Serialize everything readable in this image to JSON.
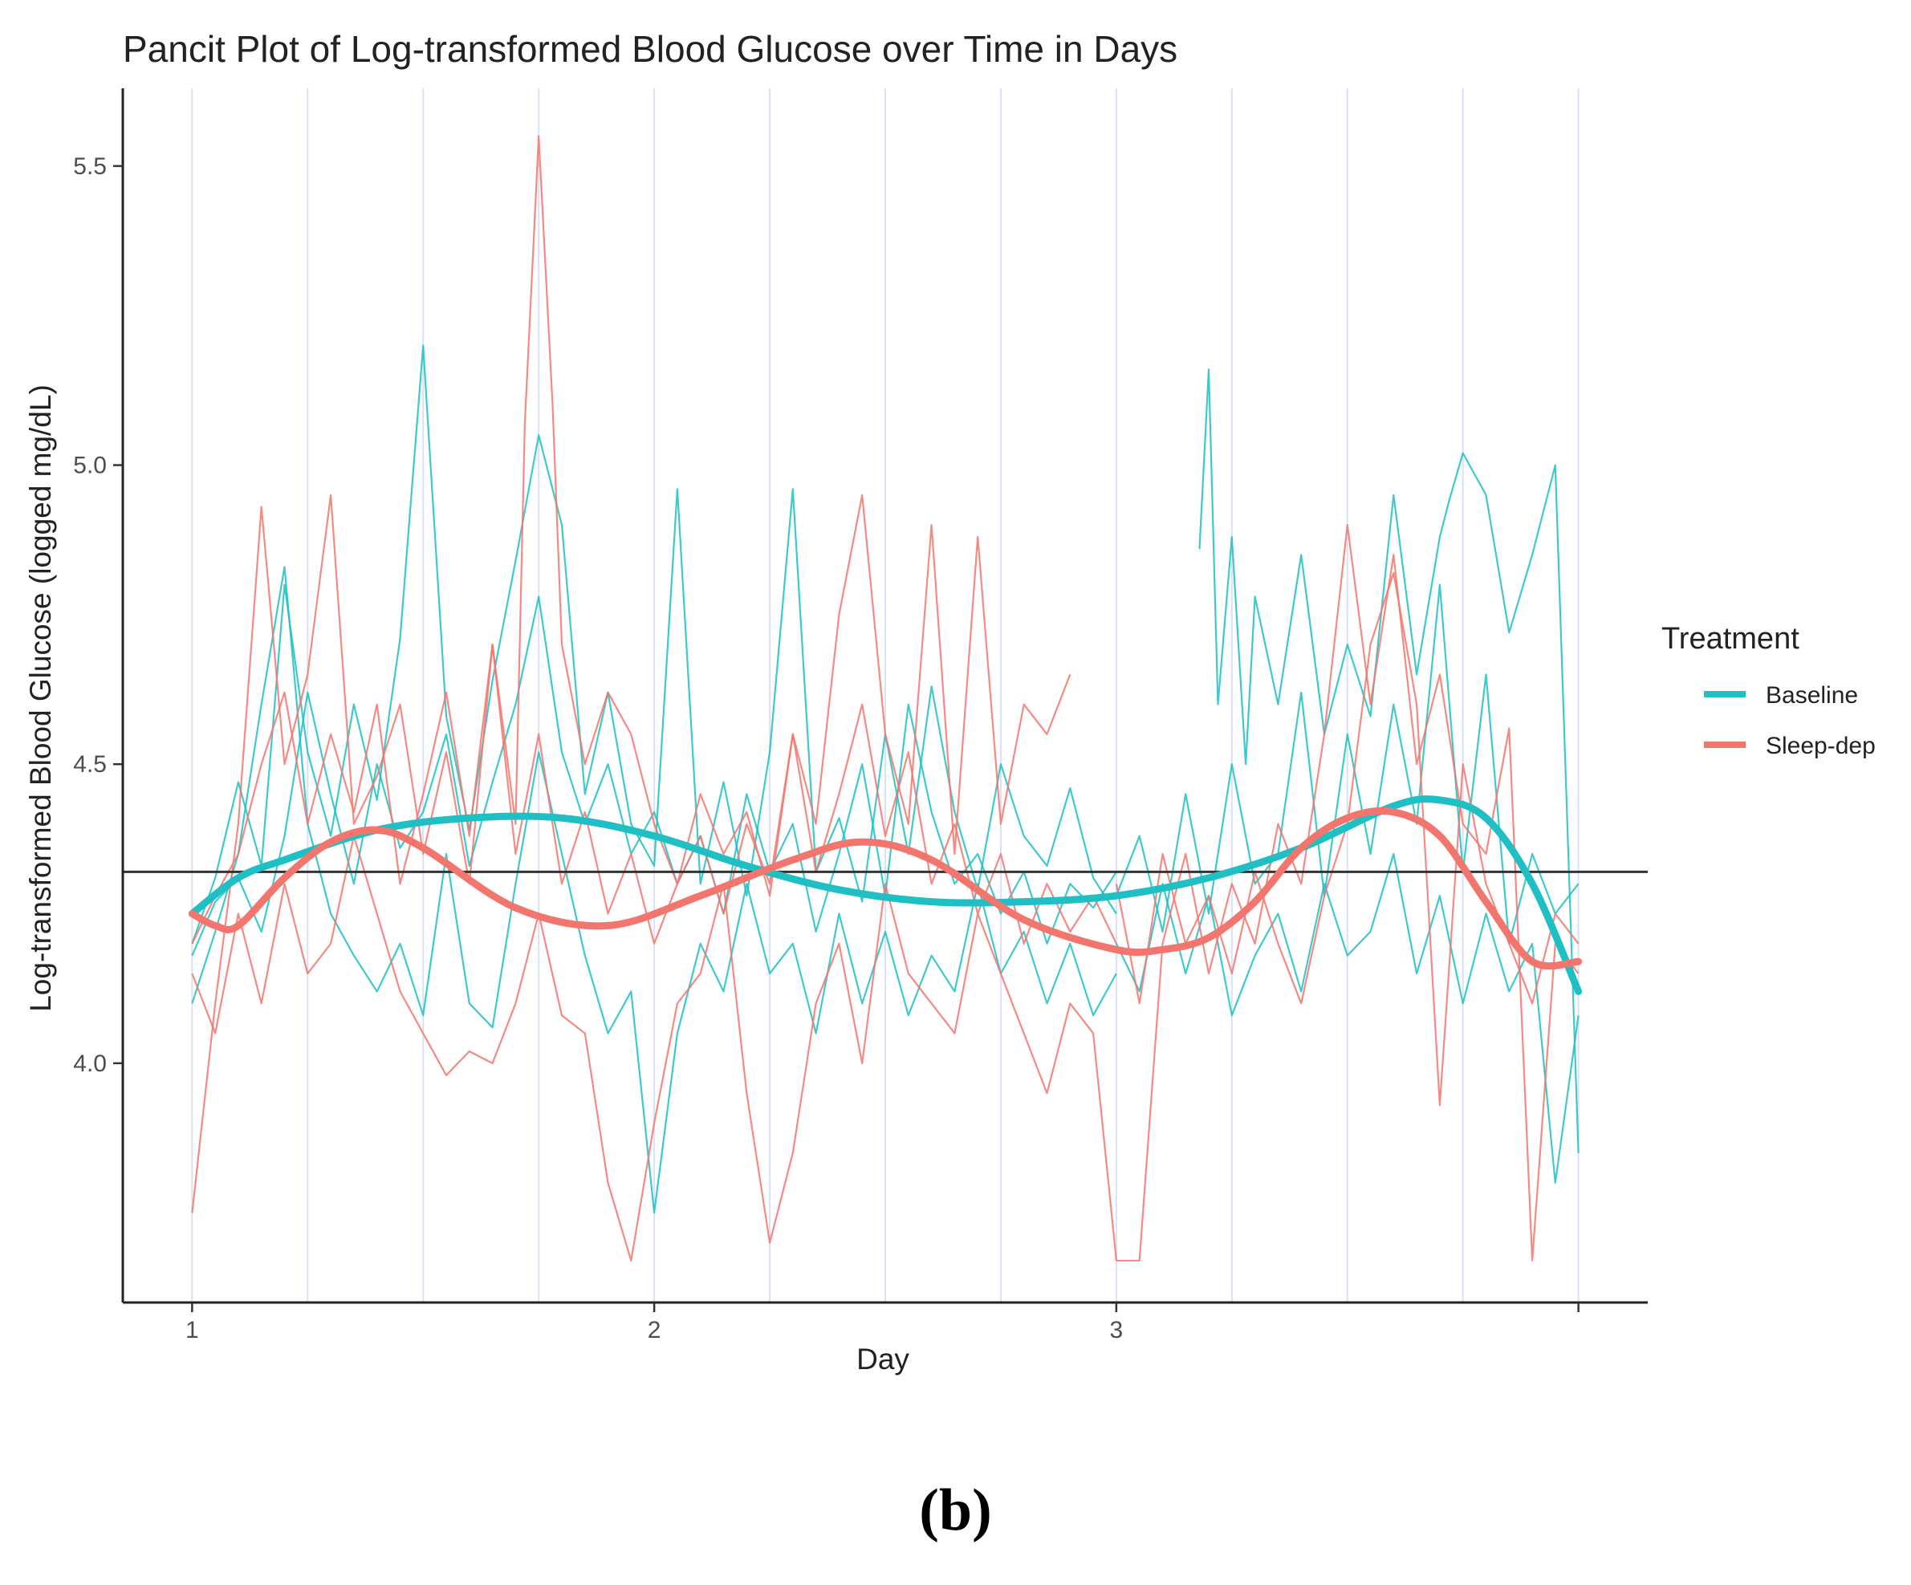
{
  "figure": {
    "caption": "(b)"
  },
  "chart_data": {
    "type": "line",
    "title": "Pancit Plot of Log-transformed Blood Glucose over Time in Days",
    "xlabel": "Day",
    "ylabel": "Log-transformed Blood Glucose (logged mg/dL)",
    "xlim": [
      0.85,
      4.15
    ],
    "ylim": [
      3.6,
      5.63
    ],
    "x_ticks": [
      1,
      2,
      3,
      4
    ],
    "x_tick_labels": [
      "1",
      "2",
      "3",
      ""
    ],
    "y_ticks": [
      4.0,
      4.5,
      5.0,
      5.5
    ],
    "y_tick_labels": [
      "4.0",
      "4.5",
      "5.0",
      "5.5"
    ],
    "vertical_gridlines": [
      1.0,
      1.25,
      1.5,
      1.75,
      2.0,
      2.25,
      2.5,
      2.75,
      3.0,
      3.25,
      3.5,
      3.75,
      4.0
    ],
    "reference_line_y": 4.32,
    "legend": {
      "title": "Treatment",
      "position": "right",
      "entries": [
        {
          "label": "Baseline",
          "color": "#1fbfc4"
        },
        {
          "label": "Sleep-dep",
          "color": "#f2766d"
        }
      ]
    },
    "smooth_series": [
      {
        "name": "Baseline",
        "color": "#1fbfc4",
        "x": [
          1.0,
          1.1,
          1.2,
          1.4,
          1.6,
          1.8,
          2.0,
          2.2,
          2.4,
          2.6,
          2.8,
          3.0,
          3.2,
          3.4,
          3.6,
          3.7,
          3.8,
          3.9,
          4.0
        ],
        "y": [
          4.25,
          4.31,
          4.34,
          4.39,
          4.41,
          4.41,
          4.38,
          4.33,
          4.29,
          4.27,
          4.27,
          4.28,
          4.31,
          4.36,
          4.43,
          4.44,
          4.41,
          4.3,
          4.12
        ]
      },
      {
        "name": "Sleep-dep",
        "color": "#f2766d",
        "x": [
          1.0,
          1.05,
          1.1,
          1.2,
          1.3,
          1.4,
          1.5,
          1.7,
          1.9,
          2.1,
          2.3,
          2.45,
          2.6,
          2.8,
          3.0,
          3.1,
          3.2,
          3.3,
          3.4,
          3.5,
          3.6,
          3.7,
          3.8,
          3.9,
          4.0
        ],
        "y": [
          4.25,
          4.23,
          4.23,
          4.31,
          4.37,
          4.39,
          4.36,
          4.26,
          4.23,
          4.28,
          4.34,
          4.37,
          4.34,
          4.24,
          4.19,
          4.19,
          4.21,
          4.27,
          4.36,
          4.41,
          4.42,
          4.38,
          4.27,
          4.17,
          4.17
        ]
      }
    ],
    "raw_series": [
      {
        "name": "Baseline subject A",
        "group": "Baseline",
        "color": "#1fbfc4",
        "x": [
          1.0,
          1.05,
          1.1,
          1.15,
          1.2,
          1.25,
          1.3,
          1.35,
          1.4,
          1.45,
          1.5,
          1.55,
          1.6,
          1.65,
          1.7,
          1.75,
          1.8,
          1.85,
          1.9,
          1.95,
          2.0,
          2.05,
          2.1,
          2.15,
          2.2,
          2.25,
          2.3,
          2.35,
          2.4,
          2.45,
          2.5,
          2.55,
          2.6,
          2.65,
          2.7,
          2.75,
          2.8,
          2.85,
          2.9,
          2.95,
          3.0
        ],
        "y": [
          4.2,
          4.31,
          4.47,
          4.33,
          4.8,
          4.52,
          4.38,
          4.6,
          4.44,
          4.71,
          5.2,
          4.58,
          4.39,
          4.64,
          4.84,
          5.05,
          4.9,
          4.45,
          4.62,
          4.4,
          4.33,
          4.96,
          4.3,
          4.47,
          4.28,
          4.52,
          4.96,
          4.32,
          4.41,
          4.27,
          4.55,
          4.35,
          4.63,
          4.42,
          4.29,
          4.5,
          4.38,
          4.33,
          4.46,
          4.31,
          4.25
        ]
      },
      {
        "name": "Baseline subject B",
        "group": "Baseline",
        "color": "#1fbfc4",
        "x": [
          1.0,
          1.05,
          1.1,
          1.15,
          1.2,
          1.25,
          1.3,
          1.35,
          1.4,
          1.45,
          1.5,
          1.55,
          1.6,
          1.65,
          1.7,
          1.75,
          1.8,
          1.85,
          1.9,
          1.95,
          2.0,
          2.05,
          2.1,
          2.15,
          2.2,
          2.25,
          2.3,
          2.35,
          2.4,
          2.45,
          2.5,
          2.55,
          2.6,
          2.65,
          2.7,
          2.75,
          2.8,
          2.85,
          2.9,
          2.95,
          3.0
        ],
        "y": [
          4.1,
          4.22,
          4.35,
          4.6,
          4.83,
          4.4,
          4.25,
          4.18,
          4.12,
          4.2,
          4.08,
          4.35,
          4.1,
          4.06,
          4.3,
          4.52,
          4.35,
          4.18,
          4.05,
          4.12,
          3.75,
          4.05,
          4.2,
          4.12,
          4.3,
          4.15,
          4.2,
          4.05,
          4.25,
          4.1,
          4.22,
          4.08,
          4.18,
          4.12,
          4.3,
          4.15,
          4.22,
          4.1,
          4.2,
          4.08,
          4.15
        ]
      },
      {
        "name": "Baseline subject C",
        "group": "Baseline",
        "color": "#1fbfc4",
        "x": [
          1.0,
          1.05,
          1.1,
          1.15,
          1.2,
          1.25,
          1.3,
          1.35,
          1.4,
          1.45,
          1.5,
          1.55,
          1.6,
          1.65,
          1.7,
          1.75,
          1.8,
          1.85,
          1.9,
          1.95,
          2.0,
          2.05,
          2.1,
          2.15,
          2.2,
          2.25,
          2.3,
          2.35,
          2.4,
          2.45,
          2.5,
          2.55,
          2.6,
          2.65,
          2.7,
          2.75,
          2.8,
          2.85,
          2.9,
          2.95,
          3.0
        ],
        "y": [
          4.18,
          4.27,
          4.31,
          4.22,
          4.38,
          4.62,
          4.45,
          4.3,
          4.5,
          4.36,
          4.42,
          4.55,
          4.33,
          4.47,
          4.6,
          4.78,
          4.52,
          4.4,
          4.5,
          4.35,
          4.42,
          4.3,
          4.38,
          4.25,
          4.45,
          4.32,
          4.4,
          4.22,
          4.35,
          4.5,
          4.28,
          4.6,
          4.42,
          4.3,
          4.35,
          4.25,
          4.32,
          4.2,
          4.3,
          4.26,
          4.32
        ]
      },
      {
        "name": "Baseline subject D",
        "group": "Baseline",
        "color": "#1fbfc4",
        "x": [
          3.0,
          3.05,
          3.1,
          3.15,
          3.2,
          3.25,
          3.3,
          3.35,
          3.4,
          3.45,
          3.5,
          3.55,
          3.6,
          3.65,
          3.7,
          3.75,
          3.8,
          3.85,
          3.9,
          3.95,
          4.0
        ],
        "y": [
          4.28,
          4.38,
          4.22,
          4.45,
          4.25,
          4.5,
          4.3,
          4.35,
          4.62,
          4.28,
          4.55,
          4.35,
          4.6,
          4.4,
          4.8,
          4.32,
          4.65,
          4.2,
          4.35,
          4.25,
          4.3
        ]
      },
      {
        "name": "Baseline subject E",
        "group": "Baseline",
        "color": "#1fbfc4",
        "x": [
          3.0,
          3.05,
          3.1,
          3.15,
          3.2,
          3.25,
          3.3,
          3.35,
          3.4,
          3.45,
          3.5,
          3.55,
          3.6,
          3.65,
          3.7,
          3.75,
          3.8,
          3.85,
          3.9,
          3.95,
          4.0
        ],
        "y": [
          4.2,
          4.12,
          4.3,
          4.15,
          4.28,
          4.08,
          4.18,
          4.25,
          4.12,
          4.3,
          4.18,
          4.22,
          4.35,
          4.15,
          4.28,
          4.1,
          4.25,
          4.12,
          4.2,
          3.8,
          4.08
        ]
      },
      {
        "name": "Baseline subject F",
        "group": "Baseline",
        "color": "#1fbfc4",
        "x": [
          3.18,
          3.2,
          3.22,
          3.25,
          3.28,
          3.3,
          3.35,
          3.4,
          3.45,
          3.5,
          3.55,
          3.6,
          3.65,
          3.7,
          3.72,
          3.75,
          3.8,
          3.85,
          3.9,
          3.95,
          4.0
        ],
        "y": [
          4.86,
          5.16,
          4.6,
          4.88,
          4.5,
          4.78,
          4.6,
          4.85,
          4.55,
          4.7,
          4.58,
          4.95,
          4.65,
          4.88,
          4.94,
          5.02,
          4.95,
          4.72,
          4.85,
          5.0,
          3.85
        ]
      },
      {
        "name": "Sleep-dep subject A",
        "group": "Sleep-dep",
        "color": "#f2766d",
        "x": [
          1.0,
          1.05,
          1.1,
          1.15,
          1.2,
          1.25,
          1.3,
          1.35,
          1.4,
          1.45,
          1.5,
          1.55,
          1.6,
          1.65,
          1.7,
          1.72,
          1.75,
          1.78,
          1.8,
          1.85,
          1.9,
          1.95,
          2.0,
          2.05,
          2.1,
          2.15,
          2.2,
          2.25,
          2.3,
          2.35,
          2.4,
          2.45,
          2.5,
          2.55,
          2.6,
          2.65,
          2.7,
          2.75,
          2.8,
          2.85,
          2.9
        ],
        "y": [
          3.75,
          4.1,
          4.4,
          4.93,
          4.5,
          4.65,
          4.95,
          4.4,
          4.48,
          4.6,
          4.35,
          4.52,
          4.3,
          4.7,
          4.4,
          5.07,
          5.55,
          5.1,
          4.7,
          4.5,
          4.62,
          4.55,
          4.4,
          4.3,
          4.45,
          4.35,
          4.42,
          4.28,
          4.55,
          4.4,
          4.75,
          4.95,
          4.55,
          4.4,
          4.9,
          4.35,
          4.88,
          4.4,
          4.6,
          4.55,
          4.65
        ]
      },
      {
        "name": "Sleep-dep subject B",
        "group": "Sleep-dep",
        "color": "#f2766d",
        "x": [
          1.0,
          1.05,
          1.1,
          1.15,
          1.2,
          1.25,
          1.3,
          1.35,
          1.4,
          1.45,
          1.5,
          1.55,
          1.6,
          1.65,
          1.7,
          1.75,
          1.8,
          1.85,
          1.9,
          1.95,
          2.0,
          2.05,
          2.1,
          2.15,
          2.2,
          2.25,
          2.3,
          2.35,
          2.4,
          2.45,
          2.5,
          2.55,
          2.6,
          2.65,
          2.7,
          2.75,
          2.8,
          2.85,
          2.9,
          2.95,
          3.0
        ],
        "y": [
          4.15,
          4.05,
          4.25,
          4.1,
          4.3,
          4.15,
          4.2,
          4.38,
          4.25,
          4.12,
          4.05,
          3.98,
          4.02,
          4.0,
          4.1,
          4.25,
          4.08,
          4.05,
          3.8,
          3.67,
          3.9,
          4.1,
          4.15,
          4.3,
          3.95,
          3.7,
          3.85,
          4.1,
          4.2,
          4.0,
          4.3,
          4.15,
          4.1,
          4.05,
          4.25,
          4.15,
          4.05,
          3.95,
          4.1,
          4.05,
          3.67
        ]
      },
      {
        "name": "Sleep-dep subject C",
        "group": "Sleep-dep",
        "color": "#f2766d",
        "x": [
          1.0,
          1.05,
          1.1,
          1.15,
          1.2,
          1.25,
          1.3,
          1.35,
          1.4,
          1.45,
          1.5,
          1.55,
          1.6,
          1.65,
          1.7,
          1.75,
          1.8,
          1.85,
          1.9,
          1.95,
          2.0,
          2.05,
          2.1,
          2.15,
          2.2,
          2.25,
          2.3,
          2.35,
          2.4,
          2.45,
          2.5,
          2.55,
          2.6,
          2.65,
          2.7,
          2.75,
          2.8,
          2.85,
          2.9,
          2.95,
          3.0
        ],
        "y": [
          4.2,
          4.28,
          4.35,
          4.5,
          4.62,
          4.4,
          4.55,
          4.42,
          4.6,
          4.3,
          4.45,
          4.62,
          4.38,
          4.7,
          4.35,
          4.55,
          4.3,
          4.42,
          4.25,
          4.35,
          4.2,
          4.3,
          4.38,
          4.25,
          4.4,
          4.3,
          4.55,
          4.32,
          4.45,
          4.6,
          4.38,
          4.52,
          4.3,
          4.4,
          4.25,
          4.35,
          4.2,
          4.3,
          4.22,
          4.28,
          4.2
        ]
      },
      {
        "name": "Sleep-dep subject D",
        "group": "Sleep-dep",
        "color": "#f2766d",
        "x": [
          3.0,
          3.05,
          3.1,
          3.15,
          3.2,
          3.25,
          3.3,
          3.35,
          3.4,
          3.45,
          3.5,
          3.55,
          3.6,
          3.65,
          3.7,
          3.75,
          3.8,
          3.85,
          3.9,
          3.95,
          4.0
        ],
        "y": [
          3.67,
          3.67,
          4.2,
          4.35,
          4.15,
          4.3,
          4.2,
          4.4,
          4.3,
          4.55,
          4.9,
          4.6,
          4.85,
          4.5,
          4.65,
          4.4,
          4.35,
          4.56,
          3.67,
          4.2,
          4.15
        ]
      },
      {
        "name": "Sleep-dep subject E",
        "group": "Sleep-dep",
        "color": "#f2766d",
        "x": [
          3.0,
          3.05,
          3.1,
          3.15,
          3.2,
          3.25,
          3.3,
          3.35,
          3.4,
          3.45,
          3.5,
          3.55,
          3.6,
          3.65,
          3.7,
          3.75,
          3.8,
          3.85,
          3.9,
          3.95,
          4.0
        ],
        "y": [
          4.3,
          4.1,
          4.35,
          4.2,
          4.28,
          4.15,
          4.32,
          4.2,
          4.1,
          4.28,
          4.4,
          4.7,
          4.82,
          4.6,
          3.93,
          4.5,
          4.3,
          4.2,
          4.1,
          4.25,
          4.2
        ]
      }
    ]
  }
}
